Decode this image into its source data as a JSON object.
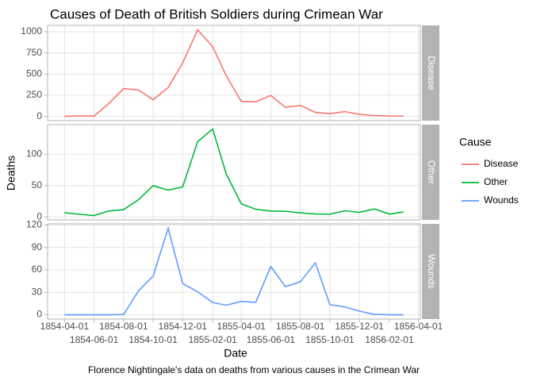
{
  "chart_data": {
    "type": "line",
    "title": "Causes of Death of British Soldiers during Crimean War",
    "caption": "Florence Nightingale's data on deaths from various causes in the Crimean War",
    "xlabel": "Date",
    "ylabel": "Deaths",
    "legend_title": "Cause",
    "legend": "right",
    "grid": true,
    "facet": true,
    "x": [
      "1854-04-01",
      "1854-05-01",
      "1854-06-01",
      "1854-07-01",
      "1854-08-01",
      "1854-09-01",
      "1854-10-01",
      "1854-11-01",
      "1854-12-01",
      "1855-01-01",
      "1855-02-01",
      "1855-03-01",
      "1855-04-01",
      "1855-05-01",
      "1855-06-01",
      "1855-07-01",
      "1855-08-01",
      "1855-09-01",
      "1855-10-01",
      "1855-11-01",
      "1855-12-01",
      "1856-01-01",
      "1856-02-01",
      "1856-03-01"
    ],
    "xlim": [
      "1854-02-25",
      "1856-04-05"
    ],
    "xticks": [
      "1854-04-01",
      "1854-06-01",
      "1854-08-01",
      "1854-10-01",
      "1854-12-01",
      "1855-02-01",
      "1855-04-01",
      "1855-06-01",
      "1855-08-01",
      "1855-10-01",
      "1855-12-01",
      "1856-02-01",
      "1856-04-01"
    ],
    "series": [
      {
        "name": "Disease",
        "color": "#F8766D",
        "ylim": [
          -50,
          1075
        ],
        "yticks": [
          0,
          250,
          500,
          750,
          1000
        ],
        "values": [
          1.4,
          6.2,
          4.7,
          150.0,
          328.5,
          312.2,
          197.0,
          340.6,
          631.5,
          1022.8,
          822.8,
          480.3,
          177.5,
          171.8,
          247.6,
          107.5,
          129.9,
          47.5,
          32.8,
          56.4,
          24.3,
          10.8,
          5.0,
          3.9
        ]
      },
      {
        "name": "Other",
        "color": "#00BA38",
        "ylim": [
          -4.4,
          147
        ],
        "yticks": [
          0,
          50,
          100
        ],
        "values": [
          7.0,
          4.6,
          2.5,
          9.6,
          11.9,
          27.7,
          50.1,
          42.8,
          48.0,
          120.0,
          140.1,
          68.6,
          21.2,
          12.5,
          9.6,
          9.3,
          6.7,
          5.0,
          4.6,
          10.1,
          7.5,
          13.0,
          4.9,
          8.1
        ]
      },
      {
        "name": "Wounds",
        "color": "#619CFF",
        "ylim": [
          -5.8,
          121.6
        ],
        "yticks": [
          0,
          30,
          60,
          90,
          120
        ],
        "values": [
          0.0,
          0.0,
          0.0,
          0.0,
          0.4,
          32.1,
          51.7,
          115.8,
          41.7,
          30.7,
          16.3,
          12.8,
          17.9,
          16.6,
          64.5,
          37.7,
          44.1,
          69.4,
          13.6,
          10.5,
          4.8,
          0.5,
          0.0,
          0.0
        ]
      }
    ]
  }
}
